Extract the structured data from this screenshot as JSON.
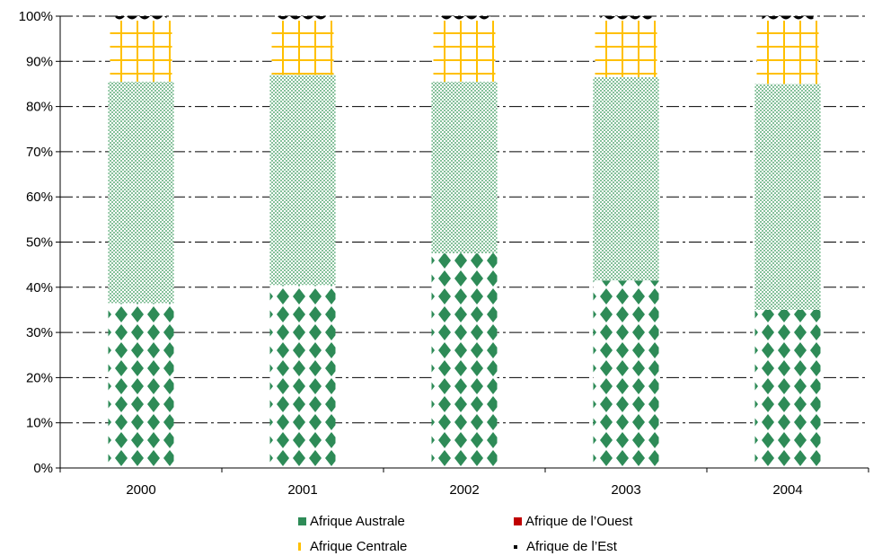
{
  "chart_data": {
    "type": "bar",
    "stacked": true,
    "percent_stacked": true,
    "categories": [
      "2000",
      "2001",
      "2002",
      "2003",
      "2004"
    ],
    "series": [
      {
        "name": "Afrique Australe",
        "values": [
          36.5,
          40.5,
          47.5,
          41.5,
          35
        ],
        "color": "#2e8b57",
        "pattern": "diamond"
      },
      {
        "name": "Afrique de l'Ouest",
        "values": [
          49,
          46.5,
          38,
          45,
          50
        ],
        "color": "#3cb371",
        "pattern": "dots"
      },
      {
        "name": "Afrique Centrale",
        "values": [
          13.5,
          12,
          13.5,
          12.5,
          14
        ],
        "color": "#ffc000",
        "pattern": "grid"
      },
      {
        "name": "Afrique de l'Est",
        "values": [
          1,
          1,
          1,
          1,
          1
        ],
        "color": "#000000",
        "pattern": "scallop"
      }
    ],
    "ylim": [
      0,
      100
    ],
    "yticks": [
      "0%",
      "10%",
      "20%",
      "30%",
      "40%",
      "50%",
      "60%",
      "70%",
      "80%",
      "90%",
      "100%"
    ],
    "grid": true,
    "legend_position": "bottom"
  },
  "legend": {
    "items": [
      {
        "label": "Afrique Australe",
        "color": "#2e8b57"
      },
      {
        "label": "Afrique de l’Ouest",
        "color": "#c00000"
      },
      {
        "label": "Afrique Centrale",
        "color": "#ffc000"
      },
      {
        "label": "Afrique de l’Est",
        "color": "#000000"
      }
    ]
  }
}
